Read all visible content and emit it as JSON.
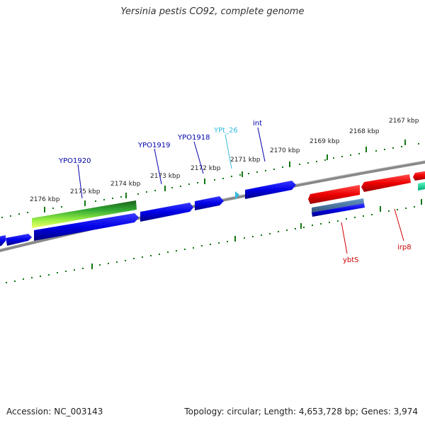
{
  "header": {
    "title": "Yersinia pestis CO92, complete genome"
  },
  "footer": {
    "accession": "Accession: NC_003143",
    "summary": "Topology: circular; Length: 4,653,728 bp; Genes: 3,974"
  },
  "scale": {
    "ticks": [
      {
        "label": "2176 kbp"
      },
      {
        "label": "2175 kbp"
      },
      {
        "label": "2174 kbp"
      },
      {
        "label": "2173 kbp"
      },
      {
        "label": "2172 kbp"
      },
      {
        "label": "2171 kbp"
      },
      {
        "label": "2170 kbp"
      },
      {
        "label": "2169 kbp"
      },
      {
        "label": "2168 kbp"
      },
      {
        "label": "2167 kbp"
      }
    ]
  },
  "genes": {
    "forward_labels": [
      {
        "name": "YPO1920",
        "color": "#0000aa"
      },
      {
        "name": "YPO1919",
        "color": "#0000aa"
      },
      {
        "name": "YPO1918",
        "color": "#0000aa"
      },
      {
        "name": "YPt_26",
        "color": "#33bbdd"
      },
      {
        "name": "int",
        "color": "#0000aa"
      }
    ],
    "reverse_labels": [
      {
        "name": "ybtS",
        "color": "#cc0000"
      },
      {
        "name": "irp8",
        "color": "#cc0000"
      }
    ]
  },
  "colors": {
    "cds_forward": "#0000ee",
    "cds_reverse": "#ee0000",
    "trna": "#33bbdd",
    "backbone": "#888888",
    "tick": "#117711"
  }
}
